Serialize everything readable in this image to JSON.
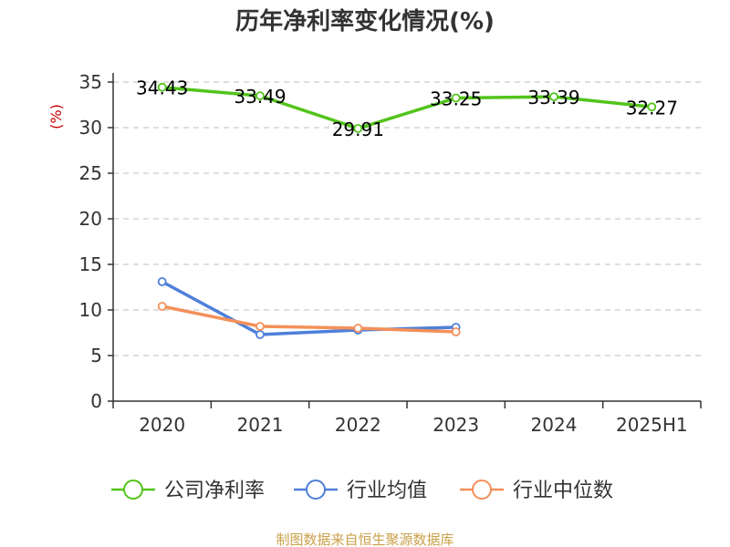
{
  "chart_data": {
    "type": "line",
    "title": "历年净利率变化情况(%)",
    "ylabel": "(%)",
    "ylim": [
      0,
      35
    ],
    "yticks": [
      0,
      5,
      10,
      15,
      20,
      25,
      30,
      35
    ],
    "grid": true,
    "categories": [
      "2020",
      "2021",
      "2022",
      "2023",
      "2024",
      "2025H1"
    ],
    "series": [
      {
        "name": "公司净利率",
        "color": "#52c41a",
        "values": [
          34.43,
          33.49,
          29.91,
          33.25,
          33.39,
          32.27
        ],
        "show_labels": true
      },
      {
        "name": "行业均值",
        "color": "#4e7fd9",
        "values": [
          13.1,
          7.3,
          7.8,
          8.1,
          null,
          null
        ],
        "show_labels": false
      },
      {
        "name": "行业中位数",
        "color": "#f5905a",
        "values": [
          10.4,
          8.2,
          8.0,
          7.6,
          null,
          null
        ],
        "show_labels": false
      }
    ],
    "legend_position": "bottom"
  },
  "footer": {
    "source": "制图数据来自恒生聚源数据库"
  },
  "colors": {
    "axis": "#333333",
    "grid": "#cccccc",
    "ylabel": "#cc0000",
    "source": "#c9a04a"
  }
}
